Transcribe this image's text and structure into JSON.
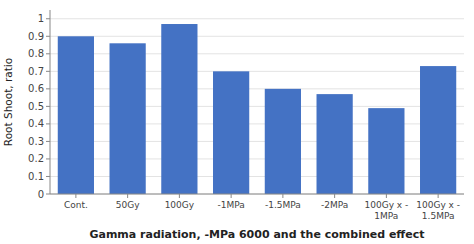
{
  "chart_data": {
    "type": "bar",
    "categories": [
      "Cont.",
      "50Gy",
      "100Gy",
      "-1MPa",
      "-1.5MPa",
      "-2MPa",
      "100Gy x -\n1MPa",
      "100Gy x -\n1.5MPa"
    ],
    "values": [
      0.9,
      0.86,
      0.97,
      0.7,
      0.6,
      0.57,
      0.49,
      0.73
    ],
    "color": "#4472C4",
    "ylabel": "Root Shoot, ratio",
    "xlabel": "Gamma radiation, -MPa 6000 and the combined effect",
    "ylim": [
      0,
      1.05
    ],
    "yticks": [
      0,
      0.1,
      0.2,
      0.3,
      0.4,
      0.5,
      0.6,
      0.7,
      0.8,
      0.9,
      1
    ],
    "grid": true
  }
}
